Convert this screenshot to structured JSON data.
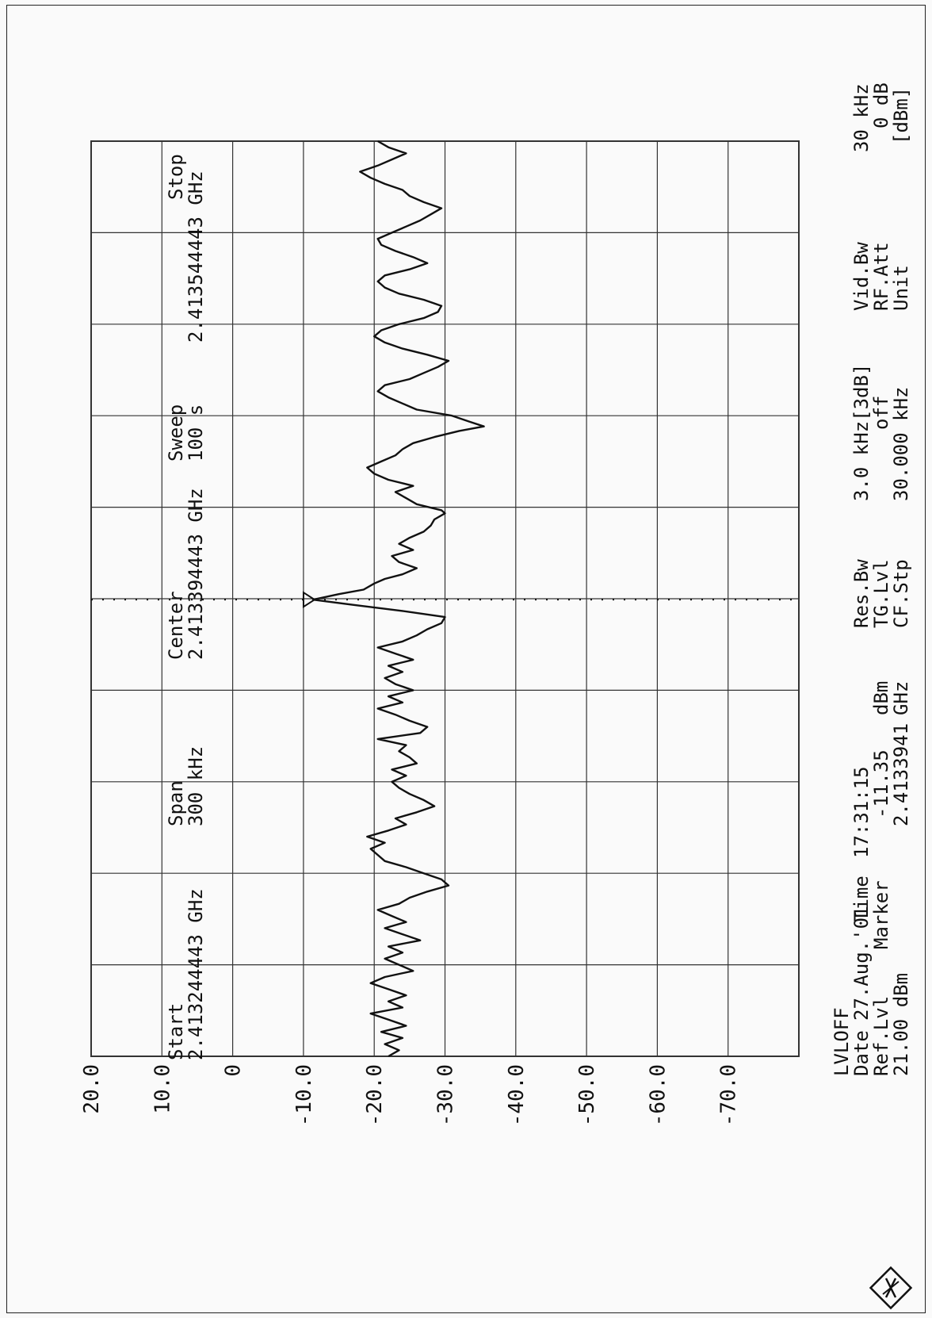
{
  "header": {
    "mode": "LVLOFF",
    "date_label": "Date",
    "date_value": "27.Aug.'01",
    "time_label": "Time",
    "time_value": "17:31:15",
    "ref_label": "Ref.Lvl",
    "ref_value": "21.00 dBm",
    "marker_label": "Marker",
    "marker_value": "-11.35",
    "marker_unit": "dBm",
    "marker_freq": "2.4133941",
    "marker_freq_unit": "GHz",
    "resbw_label": "Res.Bw",
    "resbw_value": "3.0 kHz[3dB]",
    "tglvl_label": "TG.Lvl",
    "tglvl_value": "off",
    "cfstp_label": "CF.Stp",
    "cfstp_value": "30.000 kHz",
    "vidbw_label": "Vid.Bw",
    "vidbw_value": "30 kHz",
    "rfatt_label": "RF.Att",
    "rfatt_value": "0 dB",
    "unit_label": "Unit",
    "unit_value": "[dBm]"
  },
  "footer": {
    "start_label": "Start",
    "start_value": "2.413244443 GHz",
    "span_label": "Span",
    "span_value": "300 kHz",
    "center_label": "Center",
    "center_value": "2.413394443 GHz",
    "sweep_label": "Sweep",
    "sweep_value": "100 s",
    "stop_label": "Stop",
    "stop_value": "2.413544443 GHz"
  },
  "colors": {
    "trace": "#111111",
    "grid": "#333333",
    "background": "#fafafa"
  },
  "logo_icon": "rohde-schwarz-logo-icon",
  "chart_data": {
    "type": "line",
    "xlabel": "",
    "ylabel": "",
    "x_unit": "kHz offset from Start",
    "xlim": [
      0,
      300
    ],
    "ylim": [
      -80,
      20
    ],
    "y_ticks": [
      "20.0",
      "10.0",
      "0",
      "-10.0",
      "-20.0",
      "-30.0",
      "-40.0",
      "-50.0",
      "-60.0",
      "-70.0"
    ],
    "grid": true,
    "marker": {
      "x": 149.7,
      "y": -11.35
    },
    "series": [
      {
        "points": [
          [
            0,
            -22
          ],
          [
            2,
            -23.5
          ],
          [
            4,
            -21.5
          ],
          [
            6,
            -24
          ],
          [
            8,
            -21
          ],
          [
            10,
            -24.5
          ],
          [
            12,
            -22
          ],
          [
            14,
            -19.5
          ],
          [
            16,
            -24
          ],
          [
            18,
            -22
          ],
          [
            20,
            -24.5
          ],
          [
            22,
            -22
          ],
          [
            24,
            -19.5
          ],
          [
            26,
            -21.5
          ],
          [
            28,
            -25.5
          ],
          [
            30,
            -23.5
          ],
          [
            32,
            -21.5
          ],
          [
            34,
            -24
          ],
          [
            36,
            -22
          ],
          [
            38,
            -26.5
          ],
          [
            40,
            -24
          ],
          [
            42,
            -21.5
          ],
          [
            44,
            -24.5
          ],
          [
            46,
            -22.5
          ],
          [
            48,
            -20.5
          ],
          [
            50,
            -23.5
          ],
          [
            52,
            -25
          ],
          [
            54,
            -27.5
          ],
          [
            56,
            -30.5
          ],
          [
            58,
            -29.5
          ],
          [
            60,
            -27
          ],
          [
            62,
            -24.5
          ],
          [
            64,
            -21.5
          ],
          [
            66,
            -20.5
          ],
          [
            68,
            -19.5
          ],
          [
            70,
            -21.5
          ],
          [
            72,
            -19
          ],
          [
            74,
            -22
          ],
          [
            76,
            -24.5
          ],
          [
            78,
            -23
          ],
          [
            80,
            -26
          ],
          [
            82,
            -28.5
          ],
          [
            84,
            -27
          ],
          [
            86,
            -25
          ],
          [
            88,
            -23.5
          ],
          [
            90,
            -22.5
          ],
          [
            92,
            -24.5
          ],
          [
            94,
            -22.5
          ],
          [
            96,
            -26
          ],
          [
            98,
            -25
          ],
          [
            100,
            -23.5
          ],
          [
            102,
            -24.5
          ],
          [
            104,
            -20.5
          ],
          [
            106,
            -26.5
          ],
          [
            108,
            -27.5
          ],
          [
            110,
            -25
          ],
          [
            112,
            -23
          ],
          [
            114,
            -20.5
          ],
          [
            116,
            -24
          ],
          [
            118,
            -22
          ],
          [
            120,
            -25.5
          ],
          [
            122,
            -23
          ],
          [
            124,
            -21.5
          ],
          [
            126,
            -24
          ],
          [
            128,
            -22
          ],
          [
            130,
            -25.5
          ],
          [
            132,
            -23
          ],
          [
            134,
            -20.5
          ],
          [
            136,
            -24
          ],
          [
            138,
            -26
          ],
          [
            140,
            -27.5
          ],
          [
            142,
            -29.5
          ],
          [
            144,
            -30
          ],
          [
            146,
            -24
          ],
          [
            148,
            -17
          ],
          [
            149.7,
            -11.35
          ],
          [
            151.5,
            -15
          ],
          [
            153,
            -18.5
          ],
          [
            155,
            -20
          ],
          [
            156.5,
            -21.5
          ],
          [
            158,
            -24
          ],
          [
            160,
            -26
          ],
          [
            162,
            -23.5
          ],
          [
            164,
            -22.5
          ],
          [
            166,
            -25.5
          ],
          [
            168,
            -23.5
          ],
          [
            170,
            -25
          ],
          [
            172,
            -27
          ],
          [
            174,
            -28
          ],
          [
            176,
            -28.5
          ],
          [
            178,
            -30
          ],
          [
            179,
            -29.5
          ],
          [
            181,
            -26
          ],
          [
            183,
            -24.5
          ],
          [
            185,
            -23
          ],
          [
            187,
            -25.5
          ],
          [
            189,
            -22
          ],
          [
            191,
            -20
          ],
          [
            193,
            -19
          ],
          [
            195,
            -21
          ],
          [
            197,
            -23
          ],
          [
            199,
            -24
          ],
          [
            201,
            -25.5
          ],
          [
            203,
            -28.5
          ],
          [
            205,
            -32
          ],
          [
            206.5,
            -35.5
          ],
          [
            208,
            -33.5
          ],
          [
            210,
            -31
          ],
          [
            212,
            -26
          ],
          [
            214,
            -24
          ],
          [
            216,
            -22
          ],
          [
            218,
            -20.5
          ],
          [
            220,
            -21.5
          ],
          [
            222,
            -25
          ],
          [
            224,
            -27
          ],
          [
            226,
            -29
          ],
          [
            228,
            -30.5
          ],
          [
            230,
            -27.5
          ],
          [
            232,
            -24
          ],
          [
            234,
            -21.5
          ],
          [
            236,
            -20
          ],
          [
            238,
            -21
          ],
          [
            240,
            -23.5
          ],
          [
            242,
            -27
          ],
          [
            244,
            -29
          ],
          [
            246,
            -29.5
          ],
          [
            248,
            -27
          ],
          [
            250,
            -23.5
          ],
          [
            252,
            -21.5
          ],
          [
            254,
            -20.5
          ],
          [
            256,
            -21.5
          ],
          [
            258,
            -25
          ],
          [
            260,
            -27.5
          ],
          [
            262,
            -25.5
          ],
          [
            264,
            -23
          ],
          [
            266,
            -21
          ],
          [
            268,
            -20.5
          ],
          [
            270,
            -22.5
          ],
          [
            272,
            -24.5
          ],
          [
            274,
            -26.5
          ],
          [
            276,
            -28
          ],
          [
            278,
            -29.5
          ],
          [
            280,
            -27
          ],
          [
            282,
            -25
          ],
          [
            284,
            -24
          ],
          [
            286,
            -21.5
          ],
          [
            288,
            -19.5
          ],
          [
            290,
            -18
          ],
          [
            292,
            -20.5
          ],
          [
            294,
            -22.5
          ],
          [
            296,
            -24.5
          ],
          [
            298,
            -22
          ],
          [
            300,
            -20.5
          ]
        ]
      }
    ]
  }
}
